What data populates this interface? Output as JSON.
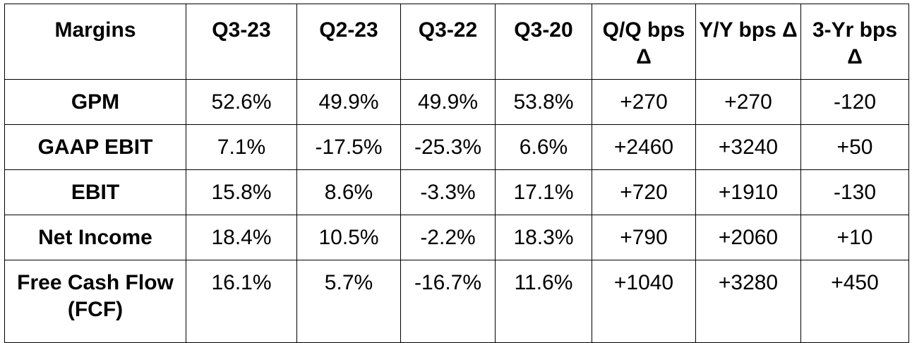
{
  "table": {
    "header": [
      "Margins",
      "Q3-23",
      "Q2-23",
      "Q3-22",
      "Q3-20",
      "Q/Q bps Δ",
      "Y/Y bps Δ",
      "3-Yr bps Δ"
    ],
    "rows": [
      [
        "GPM",
        "52.6%",
        "49.9%",
        "49.9%",
        "53.8%",
        "+270",
        "+270",
        "-120"
      ],
      [
        "GAAP EBIT",
        "7.1%",
        "-17.5%",
        "-25.3%",
        "6.6%",
        "+2460",
        "+3240",
        "+50"
      ],
      [
        "EBIT",
        "15.8%",
        "8.6%",
        "-3.3%",
        "17.1%",
        "+720",
        "+1910",
        "-130"
      ],
      [
        "Net Income",
        "18.4%",
        "10.5%",
        "-2.2%",
        "18.3%",
        "+790",
        "+2060",
        "+10"
      ],
      [
        "Free Cash Flow (FCF)",
        "16.1%",
        "5.7%",
        "-16.7%",
        "11.6%",
        "+1040",
        "+3280",
        "+450"
      ]
    ]
  }
}
